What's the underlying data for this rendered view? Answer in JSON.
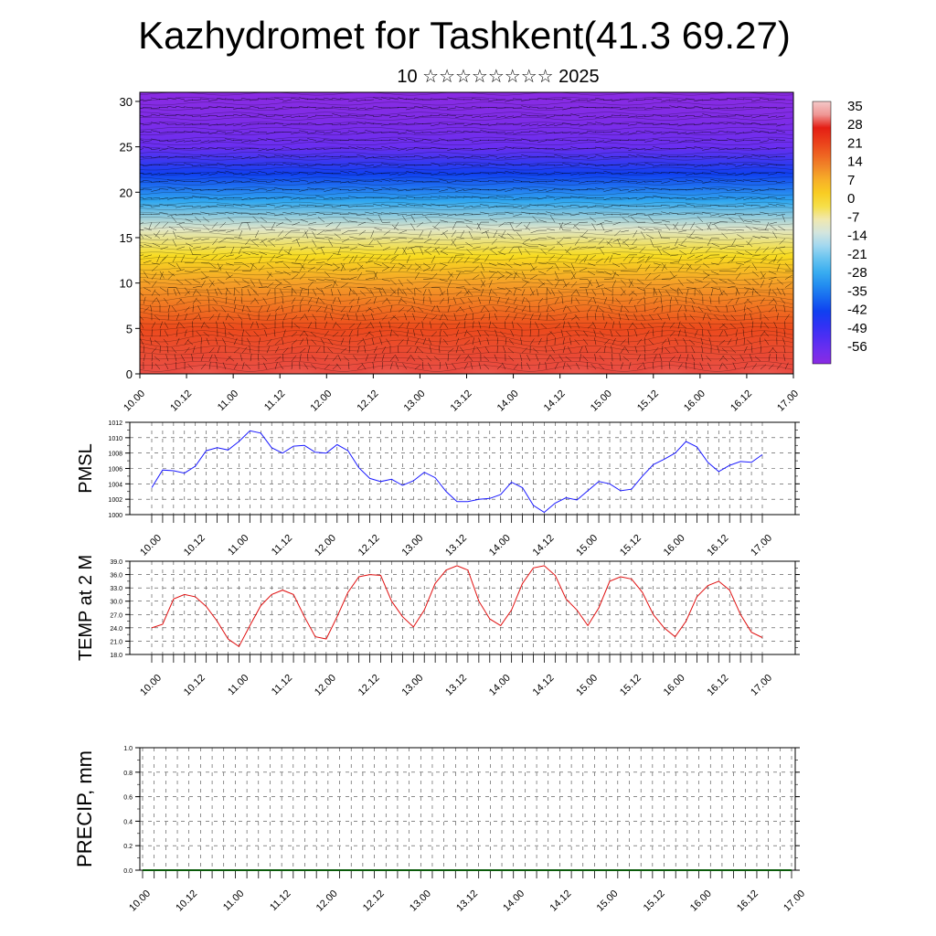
{
  "title": "Kazhydromet for Tashkent(41.3 69.27)",
  "subtitle": "10 ☆☆☆☆☆☆☆☆ 2025",
  "time_labels": [
    "10.00",
    "10.12",
    "11.00",
    "11.12",
    "12.00",
    "12.12",
    "13.00",
    "13.12",
    "14.00",
    "14.12",
    "15.00",
    "15.12",
    "16.00",
    "16.12",
    "17.00"
  ],
  "colors": {
    "pmsl_line": "#1a1aff",
    "temp_line": "#e01010",
    "precip_line": "#0a5a0a",
    "grid": "#444444"
  },
  "chart_data": [
    {
      "type": "heatmap",
      "name": "",
      "description_note": "",
      "ylim": [
        0,
        31
      ],
      "yticks": [
        0,
        5,
        10,
        15,
        20,
        25,
        30
      ],
      "colorbar_labels": [
        "35",
        "28",
        "21",
        "14",
        "7",
        "0",
        "-7",
        "-14",
        "-21",
        "-28",
        "-35",
        "-42",
        "-49",
        "-56"
      ],
      "temperature_profile": [
        {
          "level": 0,
          "value": 30
        },
        {
          "level": 5,
          "value": 21
        },
        {
          "level": 10,
          "value": 10
        },
        {
          "level": 13,
          "value": 0
        },
        {
          "level": 16,
          "value": -10
        },
        {
          "level": 19,
          "value": -28
        },
        {
          "level": 22,
          "value": -42
        },
        {
          "level": 25,
          "value": -56
        },
        {
          "level": 28,
          "value": -60
        },
        {
          "level": 31,
          "value": -62
        }
      ],
      "wind_vectors": true
    },
    {
      "type": "line",
      "ylabel": "PMSL",
      "ylim": [
        1000,
        1012
      ],
      "yticks": [
        1000,
        1002,
        1004,
        1006,
        1008,
        1010,
        1012
      ],
      "grid": true,
      "series": [
        {
          "values": [
            1003.5,
            1005.8,
            1005.7,
            1005.4,
            1006.3,
            1008.3,
            1008.7,
            1008.4,
            1009.5,
            1010.9,
            1010.6,
            1008.7,
            1008.0,
            1008.9,
            1009.0,
            1008.1,
            1008.0,
            1009.1,
            1008.3,
            1006.1,
            1004.7,
            1004.3,
            1004.6,
            1003.8,
            1004.4,
            1005.5,
            1004.8,
            1003.0,
            1001.7,
            1001.7,
            1002.0,
            1002.1,
            1002.6,
            1004.2,
            1003.5,
            1001.2,
            1000.3,
            1001.5,
            1002.2,
            1001.9,
            1003.1,
            1004.3,
            1004.0,
            1003.1,
            1003.3,
            1005.0,
            1006.5,
            1007.2,
            1008.0,
            1009.5,
            1008.8,
            1006.8,
            1005.6,
            1006.4,
            1006.9,
            1006.8,
            1007.8
          ]
        }
      ]
    },
    {
      "type": "line",
      "ylabel": "TEMP at 2 M",
      "ylim": [
        18,
        39
      ],
      "yticks": [
        "18.0",
        "21.0",
        "24.0",
        "27.0",
        "30.0",
        "33.0",
        "36.0",
        "39.0"
      ],
      "grid": true,
      "series": [
        {
          "values": [
            24.0,
            24.8,
            30.5,
            31.5,
            31.0,
            28.8,
            25.5,
            21.5,
            19.8,
            24.5,
            29.0,
            31.5,
            32.5,
            31.5,
            26.5,
            22.0,
            21.5,
            26.5,
            32.0,
            35.5,
            36.0,
            35.8,
            30.0,
            26.5,
            24.2,
            28.0,
            34.0,
            37.0,
            38.0,
            37.0,
            30.0,
            26.0,
            24.5,
            28.0,
            34.0,
            37.5,
            38.0,
            35.8,
            30.5,
            28.0,
            24.5,
            28.5,
            34.5,
            35.5,
            35.0,
            32.0,
            27.0,
            24.0,
            22.0,
            25.5,
            31.0,
            33.5,
            34.5,
            32.5,
            27.0,
            23.0,
            21.8
          ]
        }
      ]
    },
    {
      "type": "line",
      "ylabel": "PRECIP, mm",
      "ylim": [
        0,
        1
      ],
      "yticks": [
        "0.0",
        "0.2",
        "0.4",
        "0.6",
        "0.8",
        "1.0"
      ],
      "grid": true,
      "series": [
        {
          "values": [
            0,
            0,
            0,
            0,
            0,
            0,
            0,
            0,
            0,
            0,
            0,
            0,
            0,
            0,
            0,
            0,
            0,
            0,
            0,
            0,
            0,
            0,
            0,
            0,
            0,
            0,
            0,
            0,
            0,
            0,
            0,
            0,
            0,
            0,
            0,
            0,
            0,
            0,
            0,
            0,
            0,
            0,
            0,
            0,
            0,
            0,
            0,
            0,
            0,
            0,
            0,
            0,
            0,
            0,
            0,
            0,
            0
          ]
        }
      ]
    }
  ]
}
